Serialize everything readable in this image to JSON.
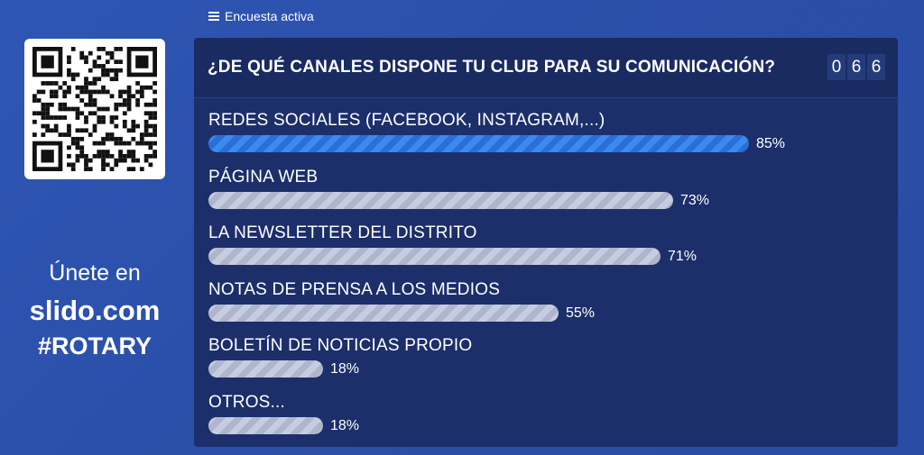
{
  "header": {
    "active_label": "Encuesta activa",
    "list_icon": "list-icon"
  },
  "join": {
    "text": "Únete en",
    "url": "slido.com",
    "code": "#ROTARY",
    "qr_icon": "qr-code-icon"
  },
  "poll": {
    "question": "¿DE QUÉ CANALES DISPONE TU CLUB PARA SU COMUNICACIÓN?",
    "vote_digits": [
      "0",
      "6",
      "6"
    ],
    "options": [
      {
        "label": "REDES SOCIALES (FACEBOOK, INSTAGRAM,...)",
        "percent_label": "85%",
        "percent": 85,
        "leading": true
      },
      {
        "label": "PÁGINA WEB",
        "percent_label": "73%",
        "percent": 73,
        "leading": false
      },
      {
        "label": "LA NEWSLETTER DEL DISTRITO",
        "percent_label": "71%",
        "percent": 71,
        "leading": false
      },
      {
        "label": "NOTAS DE PRENSA A LOS MEDIOS",
        "percent_label": "55%",
        "percent": 55,
        "leading": false
      },
      {
        "label": "BOLETÍN DE NOTICIAS PROPIO",
        "percent_label": "18%",
        "percent": 18,
        "leading": false
      },
      {
        "label": "OTROS...",
        "percent_label": "18%",
        "percent": 18,
        "leading": false
      }
    ]
  },
  "colors": {
    "background": "#2f56b4",
    "panel": "#1c2f6b",
    "leading_bar": "#3a8bf0",
    "bar": "#c7cde0"
  }
}
